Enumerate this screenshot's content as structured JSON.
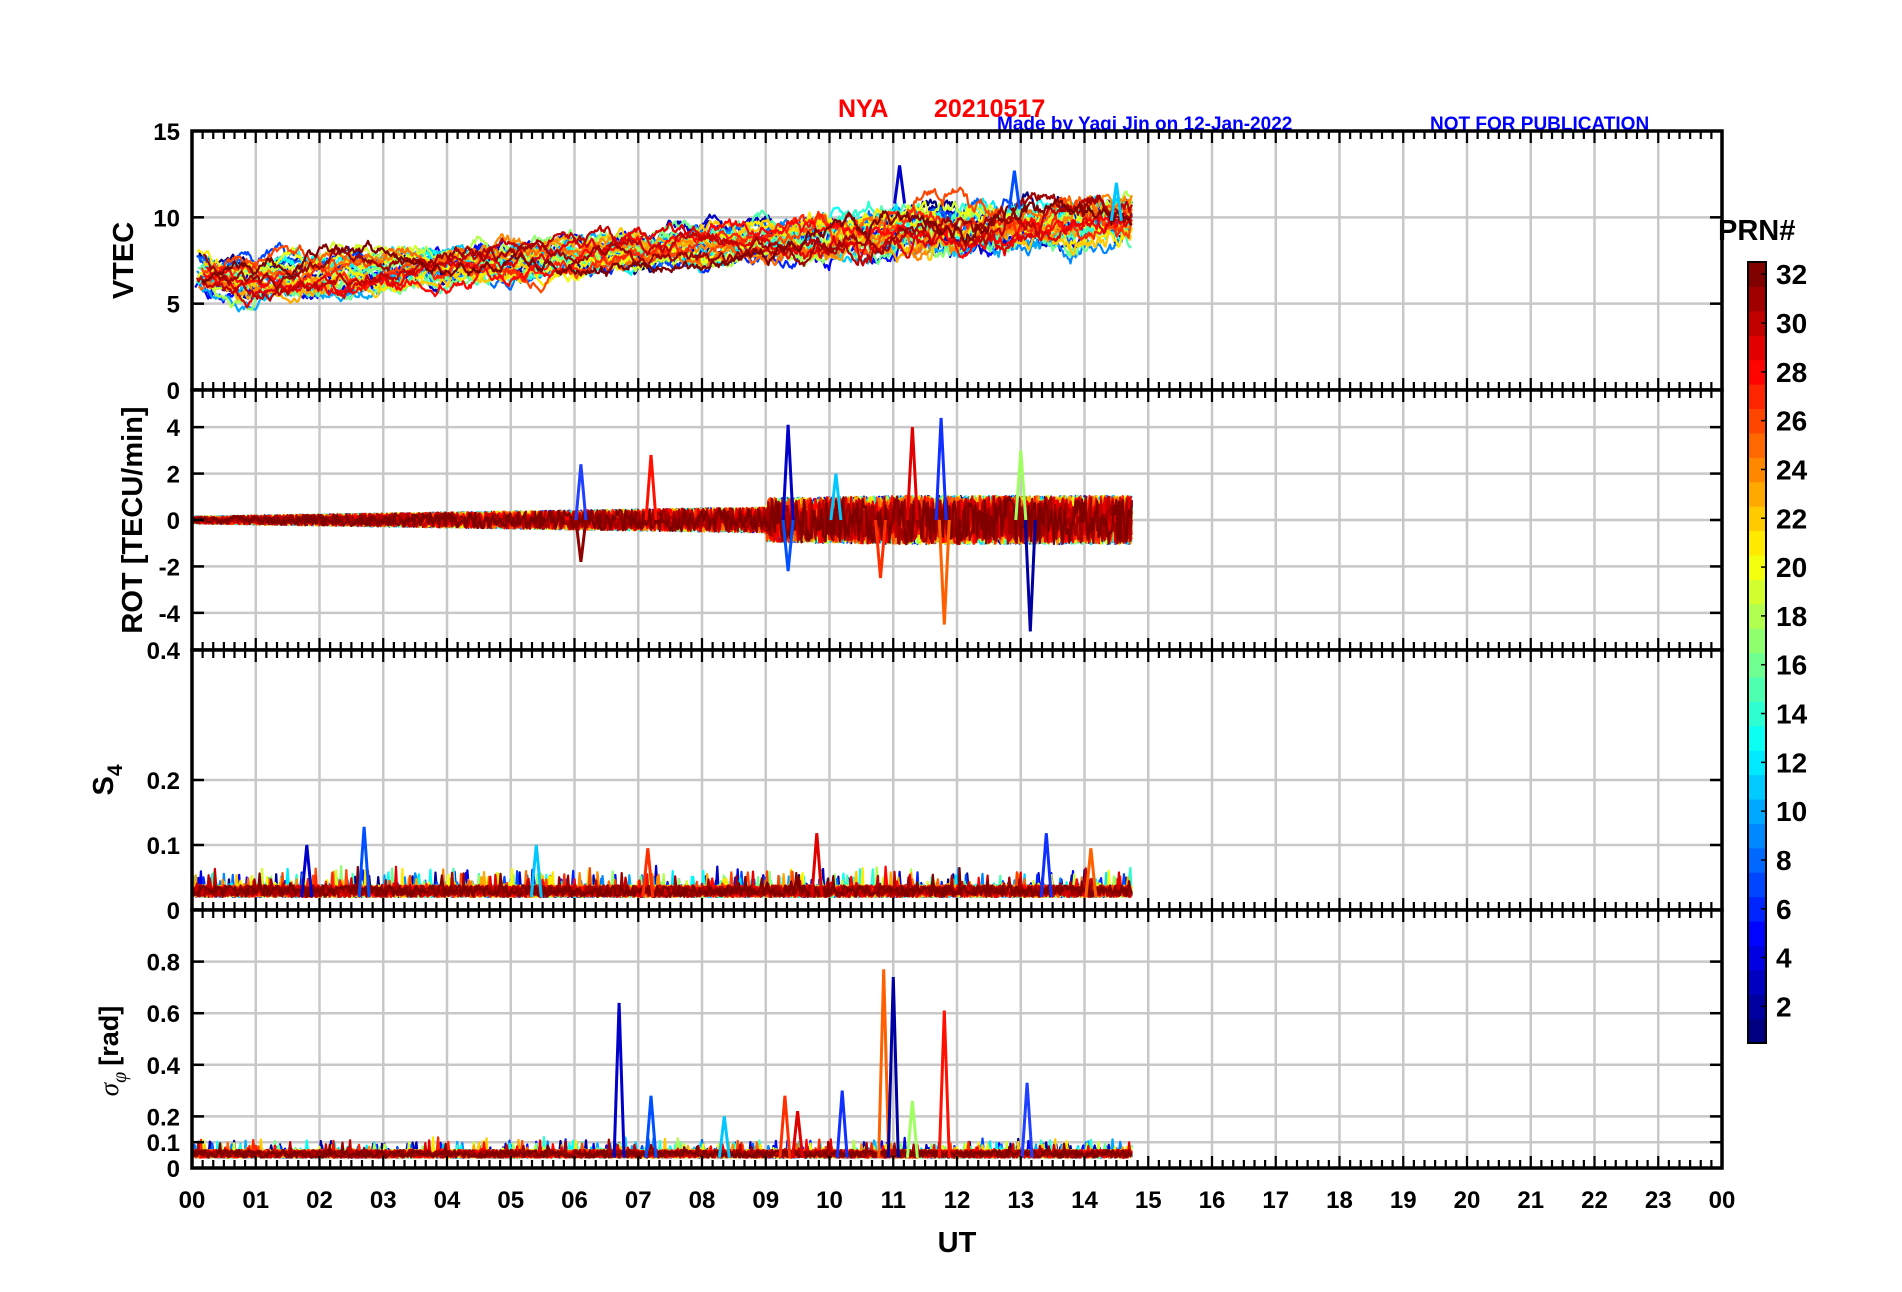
{
  "header": {
    "station": "NYA",
    "date": "20210517",
    "credit": "Made by Yaqi Jin on 12-Jan-2022",
    "notice": "NOT FOR PUBLICATION"
  },
  "chart_data": {
    "type": "line",
    "subplot_count": 4,
    "xlabel": "UT",
    "xlim": [
      0,
      24
    ],
    "x_ticks": [
      "00",
      "01",
      "02",
      "03",
      "04",
      "05",
      "06",
      "07",
      "08",
      "09",
      "10",
      "11",
      "12",
      "13",
      "14",
      "15",
      "16",
      "17",
      "18",
      "19",
      "20",
      "21",
      "22",
      "23",
      "00"
    ],
    "data_end_hour": 14.75,
    "panels": [
      {
        "id": "vtec",
        "ylabel": "VTEC",
        "ylim": [
          0,
          15
        ],
        "y_ticks": [
          {
            "v": 0,
            "label": "0"
          },
          {
            "v": 5,
            "label": "5"
          },
          {
            "v": 10,
            "label": "10"
          },
          {
            "v": 15,
            "label": "15"
          }
        ],
        "grid_y": [
          0,
          5,
          10,
          15
        ],
        "typical_range": [
          5,
          13
        ],
        "peak_events": [
          [
            11.1,
            13.0
          ],
          [
            12.9,
            12.7
          ],
          [
            14.5,
            12.0
          ]
        ]
      },
      {
        "id": "rot",
        "ylabel": "ROT [TECU/min]",
        "ylim": [
          -5.6,
          5.6
        ],
        "y_ticks": [
          {
            "v": -4,
            "label": "-4"
          },
          {
            "v": -2,
            "label": "-2"
          },
          {
            "v": 0,
            "label": "0"
          },
          {
            "v": 2,
            "label": "2"
          },
          {
            "v": 4,
            "label": "4"
          }
        ],
        "grid_y": [
          -4,
          -2,
          0,
          2,
          4
        ],
        "peak_events": [
          [
            9.35,
            4.1
          ],
          [
            9.35,
            -2.2
          ],
          [
            10.1,
            2.0
          ],
          [
            10.8,
            -2.5
          ],
          [
            11.3,
            4.0
          ],
          [
            11.75,
            4.4
          ],
          [
            11.8,
            -4.5
          ],
          [
            13.15,
            -4.8
          ],
          [
            13.0,
            3.0
          ],
          [
            7.2,
            2.8
          ],
          [
            6.1,
            2.4
          ],
          [
            6.1,
            -1.8
          ]
        ]
      },
      {
        "id": "s4",
        "ylabel": "S4",
        "ylabel_main": "S",
        "ylabel_sub": "4",
        "ylim": [
          0,
          0.4
        ],
        "y_ticks": [
          {
            "v": 0,
            "label": "0"
          },
          {
            "v": 0.1,
            "label": "0.1"
          },
          {
            "v": 0.2,
            "label": "0.2"
          },
          {
            "v": 0.4,
            "label": "0.4"
          }
        ],
        "grid_y": [
          0.1,
          0.2,
          0.4
        ],
        "typical_range": [
          0.02,
          0.05
        ],
        "peak_events": [
          [
            1.8,
            0.1
          ],
          [
            2.7,
            0.128
          ],
          [
            5.4,
            0.1
          ],
          [
            7.15,
            0.095
          ],
          [
            9.8,
            0.118
          ],
          [
            13.4,
            0.118
          ],
          [
            14.1,
            0.095
          ]
        ]
      },
      {
        "id": "sigma_phi",
        "ylabel": "σφ [rad]",
        "ylabel_sigma": "σ",
        "ylabel_phi": "φ",
        "ylabel_unit": "[rad]",
        "ylim": [
          0,
          1.0
        ],
        "y_ticks": [
          {
            "v": 0,
            "label": "0"
          },
          {
            "v": 0.1,
            "label": "0.1"
          },
          {
            "v": 0.2,
            "label": "0.2"
          },
          {
            "v": 0.4,
            "label": "0.4"
          },
          {
            "v": 0.6,
            "label": "0.6"
          },
          {
            "v": 0.8,
            "label": "0.8"
          }
        ],
        "grid_y": [
          0.1,
          0.2,
          0.4,
          0.6,
          0.8
        ],
        "typical_range": [
          0.04,
          0.09
        ],
        "peak_events": [
          [
            6.7,
            0.64
          ],
          [
            7.2,
            0.28
          ],
          [
            8.35,
            0.2
          ],
          [
            9.3,
            0.28
          ],
          [
            9.5,
            0.22
          ],
          [
            10.2,
            0.3
          ],
          [
            10.85,
            0.77
          ],
          [
            11.0,
            0.74
          ],
          [
            11.3,
            0.26
          ],
          [
            11.8,
            0.61
          ],
          [
            13.1,
            0.33
          ]
        ]
      }
    ],
    "colorbar": {
      "title": "PRN#",
      "range": [
        1,
        32
      ],
      "ticks": [
        "2",
        "4",
        "6",
        "8",
        "10",
        "12",
        "14",
        "16",
        "18",
        "20",
        "22",
        "24",
        "26",
        "28",
        "30",
        "32"
      ],
      "colormap": "jet"
    },
    "series_count": 32,
    "series_label": "PRN"
  }
}
